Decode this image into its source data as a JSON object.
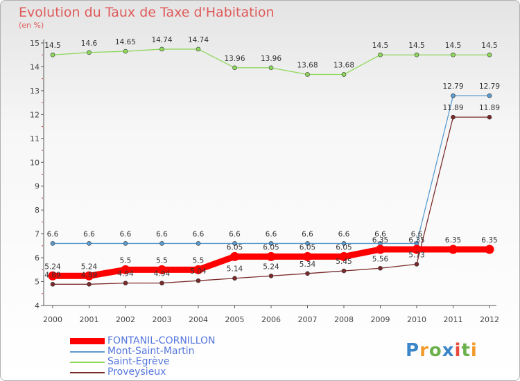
{
  "title": "Evolution du Taux de Taxe d'Habitation",
  "subtitle": "(en %)",
  "logo": {
    "text": "Proxiti",
    "letter_colors": [
      "#3a86c8",
      "#f29a2e",
      "#6ab04c",
      "#3a86c8",
      "#e84b3c",
      "#6ab04c",
      "#f29a2e"
    ]
  },
  "chart_data": {
    "type": "line",
    "title": "Evolution du Taux de Taxe d'Habitation",
    "ylabel": "(en %)",
    "xlabel": "",
    "ylim": [
      4,
      15
    ],
    "yticks": [
      "4",
      "5",
      "6",
      "7",
      "8",
      "9",
      "10",
      "11",
      "12",
      "13",
      "14",
      "15"
    ],
    "categories": [
      "2000",
      "2001",
      "2002",
      "2003",
      "2004",
      "2005",
      "2006",
      "2007",
      "2008",
      "2009",
      "2010",
      "2011",
      "2012"
    ],
    "series": [
      {
        "name": "FONTANIL-CORNILLON",
        "color": "#ff0000",
        "values": [
          5.24,
          5.24,
          5.5,
          5.5,
          5.5,
          6.05,
          6.05,
          6.05,
          6.05,
          6.35,
          6.35,
          6.35,
          6.35
        ],
        "labels": [
          "5.24",
          "5.24",
          "5.5",
          "5.5",
          "5.5",
          "6.05",
          "6.05",
          "6.05",
          "6.05",
          "6.35",
          "6.35",
          "6.35",
          "6.35"
        ]
      },
      {
        "name": "Mont-Saint-Martin",
        "color": "#5a9bd0",
        "values": [
          6.6,
          6.6,
          6.6,
          6.6,
          6.6,
          6.6,
          6.6,
          6.6,
          6.6,
          6.6,
          6.6,
          12.79,
          12.79
        ],
        "labels": [
          "6.6",
          "6.6",
          "6.6",
          "6.6",
          "6.6",
          "6.6",
          "6.6",
          "6.6",
          "6.6",
          "6.6",
          "6.6",
          "12.79",
          "12.79"
        ]
      },
      {
        "name": "Saint-Egrève",
        "color": "#8ed85a",
        "values": [
          14.5,
          14.6,
          14.65,
          14.74,
          14.74,
          13.96,
          13.96,
          13.68,
          13.68,
          14.5,
          14.5,
          14.5,
          14.5
        ],
        "labels": [
          "14.5",
          "14.6",
          "14.65",
          "14.74",
          "14.74",
          "13.96",
          "13.96",
          "13.68",
          "13.68",
          "14.5",
          "14.5",
          "14.5",
          "14.5"
        ]
      },
      {
        "name": "Proveysieux",
        "color": "#7a2a2a",
        "values": [
          4.89,
          4.89,
          4.94,
          4.94,
          5.04,
          5.14,
          5.24,
          5.34,
          5.45,
          5.56,
          5.73,
          11.89,
          11.89
        ],
        "labels": [
          "4.89",
          "4.89",
          "4.94",
          "4.94",
          "5.04",
          "5.14",
          "5.24",
          "5.34",
          "5.45",
          "5.56",
          "5.73",
          "11.89",
          "11.89"
        ]
      }
    ],
    "legend": "bottom-left",
    "grid": false
  }
}
